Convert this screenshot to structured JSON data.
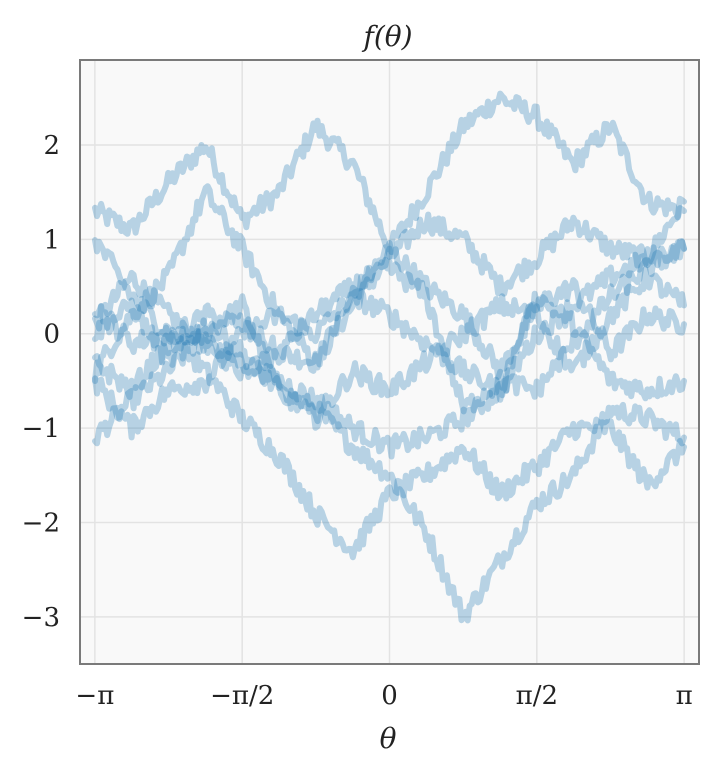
{
  "chart_data": {
    "type": "line",
    "title": "f(θ)",
    "xlabel": "θ",
    "ylabel": "",
    "xlim": [
      -3.3,
      3.3
    ],
    "ylim": [
      -3.5,
      2.9
    ],
    "x_ticks": [
      {
        "value": -3.14159,
        "label": "−π"
      },
      {
        "value": -1.5708,
        "label": "−π/2"
      },
      {
        "value": 0,
        "label": "0"
      },
      {
        "value": 1.5708,
        "label": "π/2"
      },
      {
        "value": 3.14159,
        "label": "π"
      }
    ],
    "y_ticks": [
      {
        "value": 2,
        "label": "2"
      },
      {
        "value": 1,
        "label": "1"
      },
      {
        "value": 0,
        "label": "0"
      },
      {
        "value": -1,
        "label": "−1"
      },
      {
        "value": -2,
        "label": "−2"
      },
      {
        "value": -3,
        "label": "−3"
      }
    ],
    "grid": true,
    "x": [
      -3.14,
      -2.75,
      -2.36,
      -1.96,
      -1.57,
      -1.18,
      -0.79,
      -0.39,
      0.0,
      0.39,
      0.79,
      1.18,
      1.57,
      1.96,
      2.36,
      2.75,
      3.14
    ],
    "series": [
      {
        "values": [
          1.3,
          1.1,
          1.6,
          2.0,
          1.2,
          1.5,
          2.2,
          1.8,
          0.9,
          1.5,
          2.2,
          2.5,
          2.3,
          1.8,
          2.2,
          1.4,
          1.3
        ]
      },
      {
        "values": [
          0.1,
          0.6,
          0.2,
          -0.1,
          -0.4,
          -0.2,
          -0.3,
          0.3,
          0.8,
          1.2,
          1.0,
          0.5,
          0.8,
          1.2,
          0.9,
          0.8,
          1.4
        ]
      },
      {
        "values": [
          -1.1,
          -0.7,
          -0.4,
          0.0,
          0.3,
          -0.6,
          -0.8,
          -1.2,
          -1.5,
          -2.1,
          -3.0,
          -2.4,
          -1.8,
          -1.5,
          -0.8,
          -0.9,
          -1.1
        ]
      },
      {
        "values": [
          -0.4,
          0.2,
          0.6,
          1.5,
          0.9,
          0.2,
          -0.3,
          0.4,
          0.9,
          0.5,
          0.2,
          -0.4,
          0.3,
          0.5,
          -0.2,
          0.2,
          0.1
        ]
      },
      {
        "values": [
          0.3,
          -0.1,
          0.0,
          -0.4,
          -0.9,
          -1.3,
          -1.9,
          -2.3,
          -1.7,
          -1.5,
          -1.2,
          -1.7,
          -1.4,
          -1.0,
          -1.0,
          -1.6,
          -1.2
        ]
      },
      {
        "values": [
          1.0,
          0.4,
          0.0,
          -0.1,
          -0.3,
          -0.5,
          -0.7,
          -1.0,
          -1.2,
          -1.1,
          -0.9,
          -0.6,
          0.0,
          0.3,
          0.6,
          0.8,
          0.9
        ]
      },
      {
        "values": [
          -0.5,
          -1.0,
          -0.6,
          -0.5,
          0.0,
          0.2,
          0.0,
          0.4,
          0.2,
          -0.1,
          -0.4,
          -0.6,
          0.4,
          0.1,
          -0.5,
          -0.6,
          -0.5
        ]
      },
      {
        "values": [
          0.0,
          0.3,
          -0.3,
          0.1,
          -0.2,
          -0.6,
          -0.9,
          -0.4,
          -0.6,
          -0.3,
          0.0,
          0.3,
          0.2,
          -0.4,
          0.2,
          0.6,
          0.3
        ]
      },
      {
        "values": [
          -0.3,
          -0.6,
          -0.1,
          0.2,
          0.1,
          -0.2,
          0.2,
          0.5,
          0.7,
          0.4,
          -0.8,
          -0.5,
          -0.6,
          -0.1,
          0.4,
          0.7,
          0.9
        ]
      }
    ],
    "colors": {
      "line": "#1f77b4",
      "plot_background": "#f9f9f9",
      "grid": "#e3e3e3",
      "frame": "#7a7a7a"
    }
  }
}
